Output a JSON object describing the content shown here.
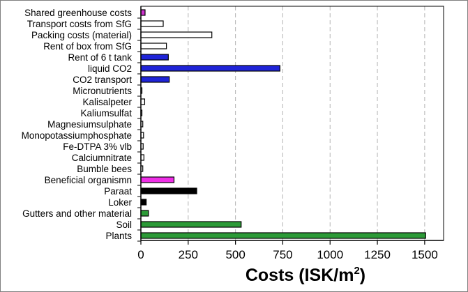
{
  "chart_data": {
    "type": "bar",
    "orientation": "horizontal",
    "xlabel": "Costs (ISK/m²)",
    "xlabel_main": "Costs (ISK/m",
    "xlabel_sup": "2",
    "xlabel_end": ")",
    "ylabel": "",
    "xlim": [
      0,
      1600
    ],
    "xticks": [
      0,
      250,
      500,
      750,
      1000,
      1250,
      1500
    ],
    "xtick_labels": [
      "0",
      "250",
      "500",
      "750",
      "1000",
      "1250",
      "1500"
    ],
    "grid": "vertical dashed",
    "categories": [
      "Shared greenhouse costs",
      "Transport costs from SfG",
      "Packing costs (material)",
      "Rent of box from SfG",
      "Rent of 6 t tank",
      "liquid CO2",
      "CO2 transport",
      "Micronutrients",
      "Kalisalpeter",
      "Kaliumsulfat",
      "Magnesiumsulphate",
      "Monopotassiumphosphate",
      "Fe-DTPA 3% vlb",
      "Calciumnitrate",
      "Bumble bees",
      "Beneficial organismn",
      "Paraat",
      "Loker",
      "Gutters and other material",
      "Soil",
      "Plants"
    ],
    "values": [
      22,
      118,
      375,
      135,
      145,
      735,
      150,
      2,
      20,
      5,
      10,
      14,
      12,
      16,
      10,
      175,
      295,
      28,
      40,
      530,
      1505
    ],
    "colors": [
      "#cc33cc",
      "#ffffff",
      "#ffffff",
      "#ffffff",
      "#1f24d8",
      "#1f24d8",
      "#1f24d8",
      "#ffffff",
      "#ffffff",
      "#ffffff",
      "#ffffff",
      "#ffffff",
      "#ffffff",
      "#ffffff",
      "#ffffff",
      "#ee2ee6",
      "#000000",
      "#000000",
      "#2c9a37",
      "#2c9a37",
      "#2c9a37"
    ]
  }
}
